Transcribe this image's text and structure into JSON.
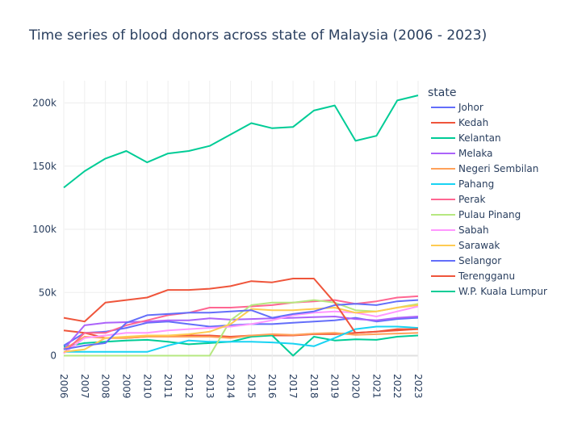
{
  "chart_data": {
    "type": "line",
    "title": "Time series of blood donors across state of Malaysia (2006 - 2023)",
    "xlabel": "",
    "ylabel": "",
    "legend_title": "state",
    "legend_position": "right",
    "grid": true,
    "x": [
      "2006",
      "2007",
      "2008",
      "2009",
      "2010",
      "2011",
      "2012",
      "2013",
      "2014",
      "2015",
      "2016",
      "2017",
      "2018",
      "2019",
      "2020",
      "2021",
      "2022",
      "2023"
    ],
    "y_ticks": [
      0,
      50000,
      100000,
      150000,
      200000
    ],
    "y_tick_labels": [
      "0",
      "50k",
      "100k",
      "150k",
      "200k"
    ],
    "ylim": [
      -7000,
      218000
    ],
    "series": [
      {
        "name": "Johor",
        "color": "#636efa",
        "values": [
          8000,
          18000,
          19000,
          22000,
          26000,
          27000,
          25000,
          23000,
          24000,
          25000,
          25000,
          26000,
          27000,
          28000,
          30000,
          27000,
          29000,
          30000
        ]
      },
      {
        "name": "Kedah",
        "color": "#EF553B",
        "values": [
          20000,
          18000,
          14000,
          14000,
          15000,
          16000,
          16000,
          16000,
          15000,
          16000,
          16000,
          16000,
          17000,
          17000,
          18000,
          19000,
          20000,
          21000
        ]
      },
      {
        "name": "Kelantan",
        "color": "#00cc96",
        "values": [
          7000,
          10000,
          11000,
          12000,
          12500,
          11000,
          9000,
          10000,
          11000,
          15000,
          16000,
          0,
          15000,
          12000,
          13000,
          12500,
          15000,
          16000
        ]
      },
      {
        "name": "Melaka",
        "color": "#ab63fa",
        "values": [
          5000,
          24000,
          26000,
          26500,
          27000,
          28000,
          28000,
          29500,
          28500,
          29000,
          29500,
          30000,
          30500,
          31000,
          29000,
          28000,
          30000,
          31000
        ]
      },
      {
        "name": "Negeri Sembilan",
        "color": "#FFA15A",
        "values": [
          5000,
          15000,
          14000,
          14000,
          15000,
          15000,
          15000,
          15000,
          14000,
          16000,
          17000,
          16500,
          17500,
          18000,
          16500,
          17000,
          17500,
          18000
        ]
      },
      {
        "name": "Pahang",
        "color": "#19d3f3",
        "values": [
          3000,
          3000,
          3000,
          3000,
          3000,
          8000,
          12000,
          11000,
          11000,
          11000,
          10500,
          9500,
          7500,
          14000,
          21000,
          23000,
          23000,
          22000
        ]
      },
      {
        "name": "Perak",
        "color": "#FF6692",
        "values": [
          2000,
          18000,
          18000,
          24000,
          28000,
          32000,
          34000,
          38000,
          38000,
          39000,
          40000,
          42000,
          43000,
          44000,
          41000,
          43000,
          46000,
          47000
        ]
      },
      {
        "name": "Pulau Pinang",
        "color": "#B6E880",
        "values": [
          0,
          0,
          0,
          0,
          0,
          0,
          0,
          0,
          28000,
          40000,
          42000,
          42000,
          44000,
          42000,
          36000,
          35000,
          38000,
          41000
        ]
      },
      {
        "name": "Sabah",
        "color": "#FF97FF",
        "values": [
          2000,
          14000,
          16000,
          18000,
          18000,
          20000,
          21000,
          22000,
          23000,
          25000,
          28000,
          32000,
          34000,
          35000,
          34000,
          31000,
          35000,
          39000
        ]
      },
      {
        "name": "Sarawak",
        "color": "#FECB52",
        "values": [
          3000,
          5000,
          14000,
          15000,
          16000,
          16000,
          17000,
          19000,
          25000,
          37000,
          36000,
          36000,
          37000,
          38000,
          34000,
          35000,
          38000,
          40000
        ]
      },
      {
        "name": "Selangor",
        "color": "#636efa",
        "values": [
          5000,
          8000,
          10000,
          26000,
          32000,
          33000,
          34000,
          34000,
          35000,
          36000,
          30000,
          33000,
          35000,
          40000,
          41000,
          40000,
          43000,
          44000
        ]
      },
      {
        "name": "Terengganu",
        "color": "#EF553B",
        "values": [
          30000,
          27000,
          42000,
          44000,
          46000,
          52000,
          52000,
          53000,
          55000,
          59000,
          58000,
          61000,
          61000,
          42000,
          18000,
          19000,
          21000,
          21000
        ]
      },
      {
        "name": "W.P. Kuala Lumpur",
        "color": "#00cc96",
        "values": [
          133000,
          146000,
          156000,
          162000,
          153000,
          160000,
          162000,
          166000,
          175000,
          184000,
          180000,
          181000,
          194000,
          198000,
          170000,
          174000,
          202000,
          206000
        ]
      }
    ]
  }
}
